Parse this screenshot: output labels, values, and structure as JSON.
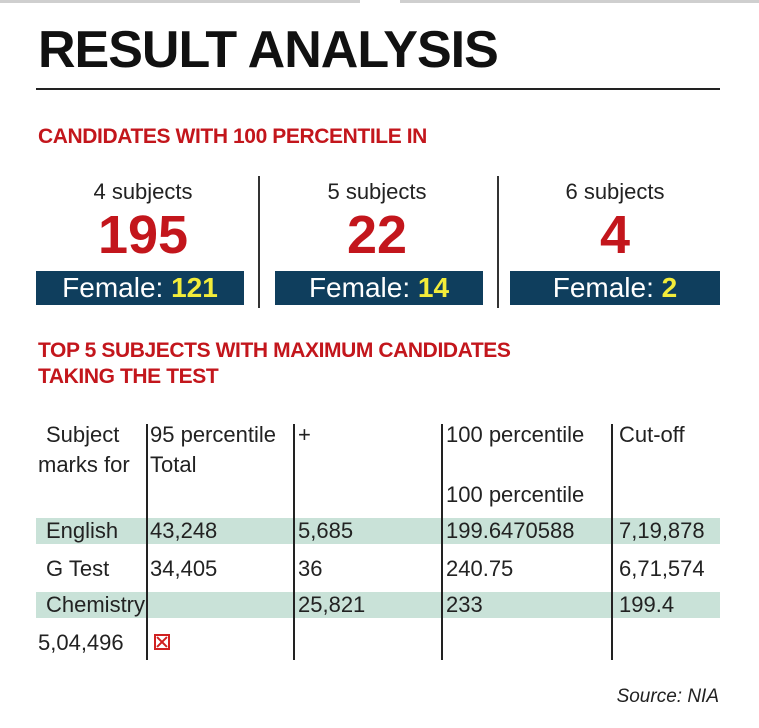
{
  "title": "RESULT ANALYSIS",
  "section1": {
    "heading": "CANDIDATES WITH 100 PERCENTILE IN",
    "stats": [
      {
        "label": "4 subjects",
        "value": "195",
        "female_label": "Female:",
        "female_value": "121"
      },
      {
        "label": "5 subjects",
        "value": "22",
        "female_label": "Female:",
        "female_value": "14"
      },
      {
        "label": "6 subjects",
        "value": "4",
        "female_label": "Female:",
        "female_value": "2"
      }
    ]
  },
  "section2": {
    "heading_line1": "TOP 5 SUBJECTS WITH MAXIMUM CANDIDATES",
    "heading_line2": "TAKING THE TEST",
    "header": {
      "subject_line1": "Subject",
      "subject_line2": "marks for",
      "p95_line1": "95 percentile",
      "p95_line2": "Total",
      "plus": "+",
      "p100": "100 percentile",
      "cutoff": "Cut-off",
      "p100_second": "100 percentile"
    },
    "rows": [
      {
        "c1": "English",
        "c2": "43,248",
        "c3": "5,685",
        "c4": "199.6470588",
        "c5": "7,19,878"
      },
      {
        "c1": "G Test",
        "c2": "34,405",
        "c3": "36",
        "c4": "240.75",
        "c5": "6,71,574"
      },
      {
        "c1": "Chemistry",
        "c2": "",
        "c3": "25,821",
        "c4": "233",
        "c5": "199.4"
      },
      {
        "c1": "5,04,496",
        "c2": "",
        "c3": "",
        "c4": "",
        "c5": ""
      }
    ]
  },
  "source": "Source: NIA",
  "colors": {
    "accent": "#c3161c",
    "navy": "#0f3e5d",
    "highlight": "#f3ec3a",
    "band": "#c9e2d8"
  }
}
